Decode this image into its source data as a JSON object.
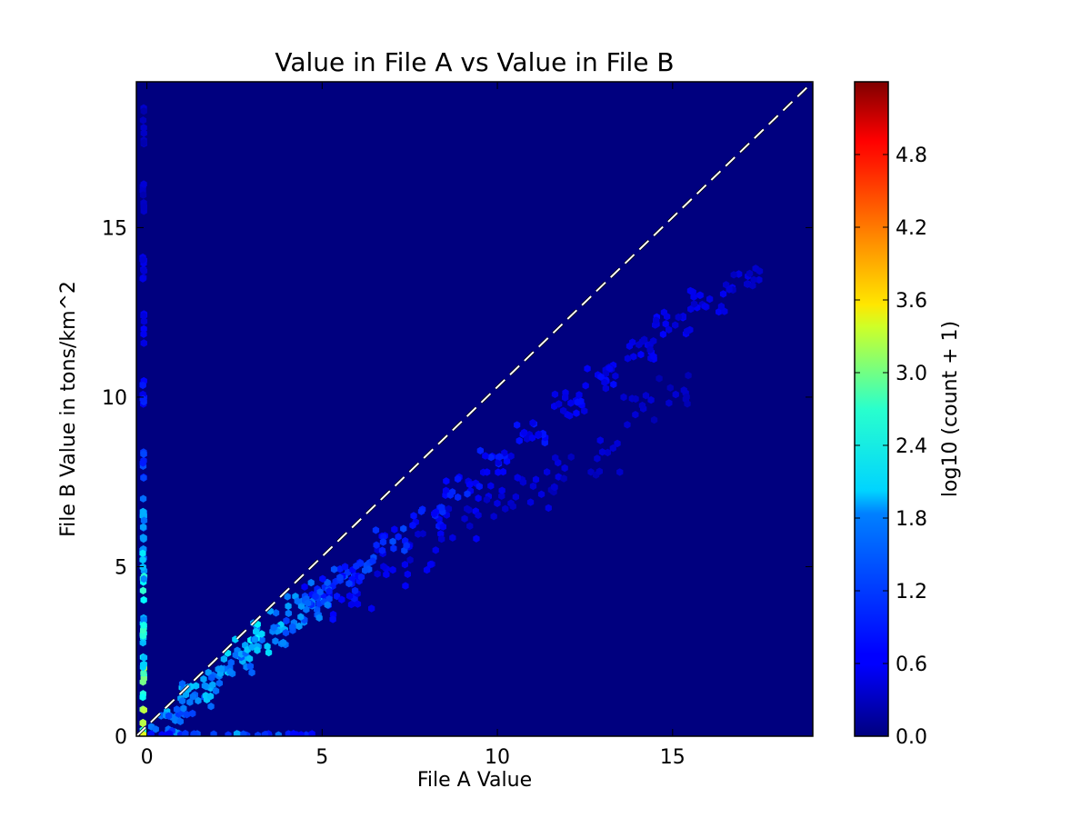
{
  "chart_data": {
    "type": "heatmap",
    "subtype": "hexbin",
    "title": "Value in File A vs Value in File B",
    "xlabel": "File A Value",
    "ylabel": "File B Value in tons/km^2",
    "xlim": [
      -0.3,
      19
    ],
    "ylim": [
      0,
      19.3
    ],
    "xticks": [
      0,
      5,
      10,
      15
    ],
    "yticks": [
      0,
      5,
      10,
      15
    ],
    "reference_line": {
      "style": "dashed",
      "stroke": "#000000",
      "dash": "#ffffff",
      "from": [
        -0.3,
        0
      ],
      "to": [
        19,
        19.3
      ]
    },
    "background_color": "#00007f",
    "colormap": "jet",
    "colorbar": {
      "label": "log10 (count + 1)",
      "range": [
        0,
        5.4
      ],
      "ticks": [
        "0.0",
        "0.6",
        "1.2",
        "1.8",
        "2.4",
        "3.0",
        "3.6",
        "4.2",
        "4.8"
      ]
    },
    "density": {
      "main_band": [
        {
          "x": 0.5,
          "y": 0.4,
          "value": 1.3
        },
        {
          "x": 1.0,
          "y": 0.9,
          "value": 1.5
        },
        {
          "x": 1.5,
          "y": 1.2,
          "value": 1.6
        },
        {
          "x": 2.0,
          "y": 1.8,
          "value": 1.6
        },
        {
          "x": 2.5,
          "y": 2.2,
          "value": 1.7
        },
        {
          "x": 3.0,
          "y": 2.6,
          "value": 1.8
        },
        {
          "x": 3.5,
          "y": 3.0,
          "value": 1.7
        },
        {
          "x": 4.0,
          "y": 3.4,
          "value": 1.5
        },
        {
          "x": 4.5,
          "y": 3.8,
          "value": 1.35
        },
        {
          "x": 5.0,
          "y": 4.2,
          "value": 1.2
        },
        {
          "x": 5.5,
          "y": 4.6,
          "value": 1.1
        },
        {
          "x": 6.0,
          "y": 5.0,
          "value": 1.0
        },
        {
          "x": 7.0,
          "y": 5.8,
          "value": 0.95
        },
        {
          "x": 8.0,
          "y": 6.5,
          "value": 0.85
        },
        {
          "x": 9.0,
          "y": 7.3,
          "value": 0.8
        },
        {
          "x": 10.0,
          "y": 8.1,
          "value": 0.75
        },
        {
          "x": 11.0,
          "y": 8.9,
          "value": 0.7
        },
        {
          "x": 12.0,
          "y": 9.8,
          "value": 0.65
        },
        {
          "x": 13.0,
          "y": 10.6,
          "value": 0.65
        },
        {
          "x": 14.0,
          "y": 11.4,
          "value": 0.6
        },
        {
          "x": 15.0,
          "y": 12.2,
          "value": 0.6
        },
        {
          "x": 16.0,
          "y": 12.8,
          "value": 0.55
        },
        {
          "x": 17.0,
          "y": 13.5,
          "value": 0.5
        }
      ],
      "lower_branch": [
        {
          "x": 5.0,
          "y": 3.9,
          "value": 0.8
        },
        {
          "x": 6.0,
          "y": 4.3,
          "value": 0.7
        },
        {
          "x": 7.0,
          "y": 4.9,
          "value": 0.6
        },
        {
          "x": 8.0,
          "y": 5.5,
          "value": 0.55
        },
        {
          "x": 9.0,
          "y": 6.2,
          "value": 0.55
        },
        {
          "x": 10.0,
          "y": 6.8,
          "value": 0.5
        },
        {
          "x": 11.0,
          "y": 7.3,
          "value": 0.5
        },
        {
          "x": 12.0,
          "y": 7.7,
          "value": 0.45
        },
        {
          "x": 13.0,
          "y": 8.3,
          "value": 0.45
        },
        {
          "x": 14.0,
          "y": 9.5,
          "value": 0.4
        },
        {
          "x": 15.0,
          "y": 10.4,
          "value": 0.4
        }
      ],
      "x_zero_column": [
        {
          "x": -0.1,
          "y": 0.5,
          "value": 3.0
        },
        {
          "x": -0.1,
          "y": 1.5,
          "value": 2.7
        },
        {
          "x": -0.1,
          "y": 2.5,
          "value": 2.3
        },
        {
          "x": -0.1,
          "y": 3.5,
          "value": 2.1
        },
        {
          "x": -0.1,
          "y": 4.5,
          "value": 2.0
        },
        {
          "x": -0.1,
          "y": 5.5,
          "value": 1.8
        },
        {
          "x": -0.1,
          "y": 6.5,
          "value": 1.5
        },
        {
          "x": -0.1,
          "y": 8.0,
          "value": 1.0
        },
        {
          "x": -0.1,
          "y": 10.0,
          "value": 0.8
        },
        {
          "x": -0.1,
          "y": 12.0,
          "value": 0.6
        },
        {
          "x": -0.1,
          "y": 14.0,
          "value": 0.5
        },
        {
          "x": -0.1,
          "y": 16.0,
          "value": 0.4
        },
        {
          "x": -0.1,
          "y": 18.0,
          "value": 0.35
        }
      ],
      "y_zero_row": [
        {
          "x": 0.5,
          "y": 0.05,
          "value": 0.9
        },
        {
          "x": 1.5,
          "y": 0.05,
          "value": 1.0
        },
        {
          "x": 2.5,
          "y": 0.05,
          "value": 1.4
        },
        {
          "x": 3.5,
          "y": 0.05,
          "value": 1.2
        },
        {
          "x": 4.5,
          "y": 0.05,
          "value": 0.8
        }
      ]
    }
  }
}
